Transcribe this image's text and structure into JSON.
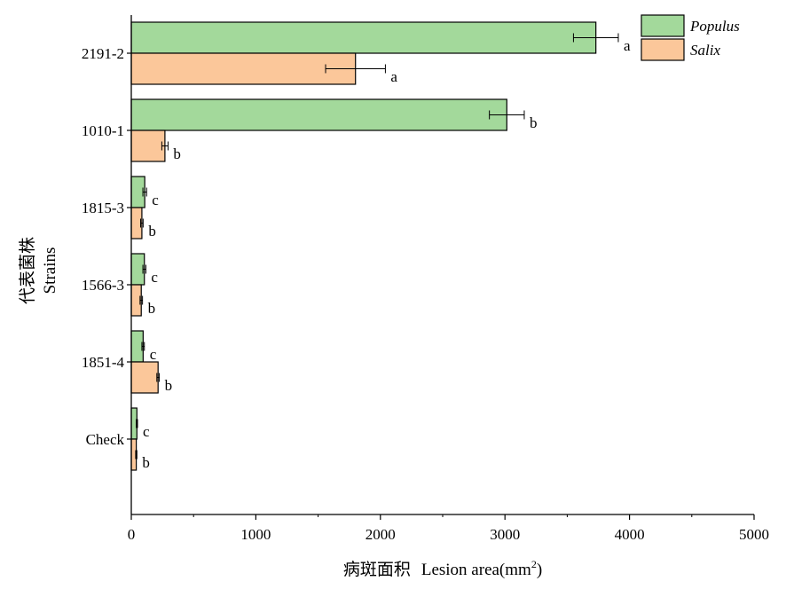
{
  "chart_data": {
    "type": "bar",
    "orientation": "horizontal",
    "categories": [
      "2191-2",
      "1010-1",
      "1815-3",
      "1566-3",
      "1851-4",
      "Check"
    ],
    "series": [
      {
        "name": "Populus",
        "color": "#a3d99b",
        "values": [
          3730,
          3015,
          108,
          105,
          95,
          45
        ],
        "errors": [
          180,
          140,
          15,
          12,
          10,
          5
        ],
        "labels": [
          "a",
          "b",
          "c",
          "c",
          "c",
          "c"
        ]
      },
      {
        "name": "Salix",
        "color": "#fbc79a",
        "values": [
          1800,
          270,
          85,
          80,
          215,
          40
        ],
        "errors": [
          240,
          25,
          10,
          10,
          10,
          5
        ],
        "labels": [
          "a",
          "b",
          "b",
          "b",
          "b",
          "b"
        ]
      }
    ],
    "xlabel": {
      "chinese": "病斑面积",
      "english": "Lesion area(mm",
      "superscript": "2",
      "closing": ")"
    },
    "ylabel": {
      "chinese": "代表菌株",
      "english": "Strains"
    },
    "xlim": [
      0,
      5000
    ],
    "xticks": [
      0,
      1000,
      2000,
      3000,
      4000,
      5000
    ],
    "legend_position": "top-right",
    "grid": false
  }
}
